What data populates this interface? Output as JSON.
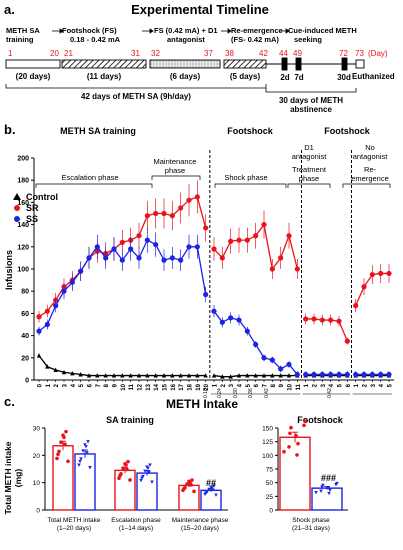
{
  "panel_a": {
    "letter": "a.",
    "title": "Experimental Timeline",
    "stages": [
      {
        "label": "METH SA",
        "label2": "training",
        "days_text": "(20 days)"
      },
      {
        "label": "Footshock (FS)",
        "label2": "0.18 - 0.42 mA",
        "days_text": "(11 days)"
      },
      {
        "label": "FS (0.42 mA) + D1",
        "label2": "antagonist",
        "days_text": "(6 days)"
      },
      {
        "label": "Re-emergence",
        "label2": "(FS- 0.42 mA)",
        "days_text": "(5 days)"
      },
      {
        "label": "Cue-induced METH",
        "label2": "seeking"
      }
    ],
    "day_numbers": [
      "1",
      "20",
      "21",
      "31",
      "32",
      "37",
      "38",
      "42",
      "44",
      "49",
      "72",
      "73",
      "(Day)"
    ],
    "test_days": [
      "2d",
      "7d",
      "30d"
    ],
    "euthanized": "Euthanized",
    "bracket1": "42 days of METH SA (9h/day)",
    "bracket2_line1": "30 days of METH",
    "bracket2_line2": "abstinence"
  },
  "panel_b": {
    "letter": "b.",
    "phase_titles": [
      "METH SA training",
      "Footshock",
      "Footshock"
    ],
    "sub_phases": [
      "Escalation phase",
      "Maintenance",
      "phase",
      "Shock phase",
      "D1",
      "antagonist",
      "Treatment",
      "phase",
      "No",
      "antagonist",
      "Re-",
      "emergence"
    ],
    "legend": [
      "Control",
      "SR",
      "SS"
    ],
    "ylabel": "Infusions",
    "yticks": [
      "0",
      "20",
      "40",
      "60",
      "80",
      "100",
      "120",
      "140",
      "160",
      "180",
      "200"
    ],
    "xticks": [
      "0",
      "1",
      "2",
      "3",
      "4",
      "5",
      "6",
      "7",
      "8",
      "9",
      "10",
      "11",
      "12",
      "13",
      "14",
      "15",
      "16",
      "17",
      "18",
      "19",
      "20",
      "1",
      "2",
      "3",
      "4",
      "5",
      "6",
      "7",
      "8",
      "9",
      "10",
      "11",
      "1",
      "2",
      "3",
      "4",
      "5",
      "6",
      "1",
      "2",
      "3",
      "4",
      "5"
    ],
    "shock_labels": [
      "0.18",
      "0.24",
      "0.30",
      "0.36",
      "0.42",
      "0.42"
    ]
  },
  "chart_data": {
    "type": "line",
    "ylabel": "Infusions",
    "ylim": [
      0,
      200
    ],
    "x": [
      0,
      1,
      2,
      3,
      4,
      5,
      6,
      7,
      8,
      9,
      10,
      11,
      12,
      13,
      14,
      15,
      16,
      17,
      18,
      19,
      20,
      21,
      22,
      23,
      24,
      25,
      26,
      27,
      28,
      29,
      30,
      31,
      32,
      33,
      34,
      35,
      36,
      37,
      38,
      39,
      40,
      41,
      42
    ],
    "series": [
      {
        "name": "Control",
        "color": "#000000",
        "values": [
          22,
          12,
          9,
          7,
          6,
          5,
          4,
          4,
          4,
          4,
          4,
          4,
          4,
          4,
          4,
          4,
          4,
          4,
          4,
          4,
          4,
          4,
          3,
          3,
          4,
          4,
          4,
          4,
          4,
          4,
          4,
          4,
          4,
          4,
          4,
          4,
          4,
          4,
          4,
          4,
          4,
          4,
          4
        ]
      },
      {
        "name": "SR",
        "color": "#e8141b",
        "values": [
          57,
          62,
          72,
          84,
          90,
          98,
          110,
          116,
          114,
          118,
          124,
          126,
          130,
          148,
          150,
          150,
          148,
          155,
          162,
          165,
          137,
          118,
          110,
          125,
          126,
          126,
          130,
          140,
          100,
          110,
          130,
          100,
          55,
          55,
          54,
          54,
          53,
          35,
          67,
          84,
          95,
          96,
          96
        ]
      },
      {
        "name": "SS",
        "color": "#1d23e6",
        "values": [
          44,
          50,
          67,
          80,
          88,
          98,
          110,
          120,
          110,
          118,
          108,
          118,
          110,
          126,
          122,
          108,
          110,
          108,
          120,
          120,
          77,
          62,
          52,
          56,
          54,
          44,
          32,
          20,
          18,
          10,
          14,
          5,
          5,
          5,
          5,
          5,
          5,
          5,
          5,
          5,
          5,
          5,
          5
        ]
      }
    ]
  },
  "panel_c": {
    "letter": "c.",
    "title": "METH Intake",
    "left_title": "SA training",
    "right_title": "Footshock",
    "ylabel": "Total METH intake",
    "ylabel2": "(mg)",
    "left_yticks": [
      "0",
      "10",
      "20",
      "30"
    ],
    "right_yticks": [
      "0",
      "25",
      "50",
      "75",
      "100",
      "125",
      "150"
    ],
    "left_groups": [
      "Total METH intake",
      "(1–20 days)",
      "Escalation phase",
      "(1–14 days)",
      "Maintenance phase",
      "(15–20 days)"
    ],
    "right_groups": [
      "Shock phase",
      "(21–31 days)"
    ],
    "sig_left": "##",
    "sig_right": "###",
    "bars_left": [
      {
        "group": "Total",
        "SR": 23.5,
        "SS": 20.5
      },
      {
        "group": "Escalation",
        "SR": 14.5,
        "SS": 13.5
      },
      {
        "group": "Maintenance",
        "SR": 9.0,
        "SS": 7.2
      }
    ],
    "bars_right": [
      {
        "group": "Shock",
        "SR": 133,
        "SS": 40
      }
    ]
  }
}
